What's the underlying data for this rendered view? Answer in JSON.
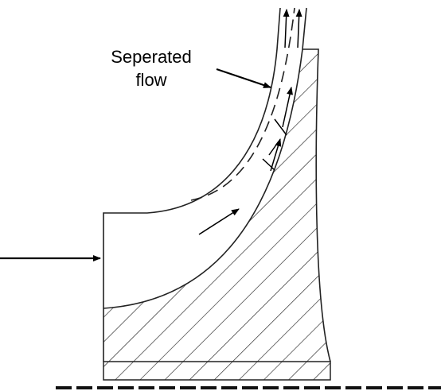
{
  "label": {
    "lines": [
      "Seperated",
      "flow"
    ]
  }
}
